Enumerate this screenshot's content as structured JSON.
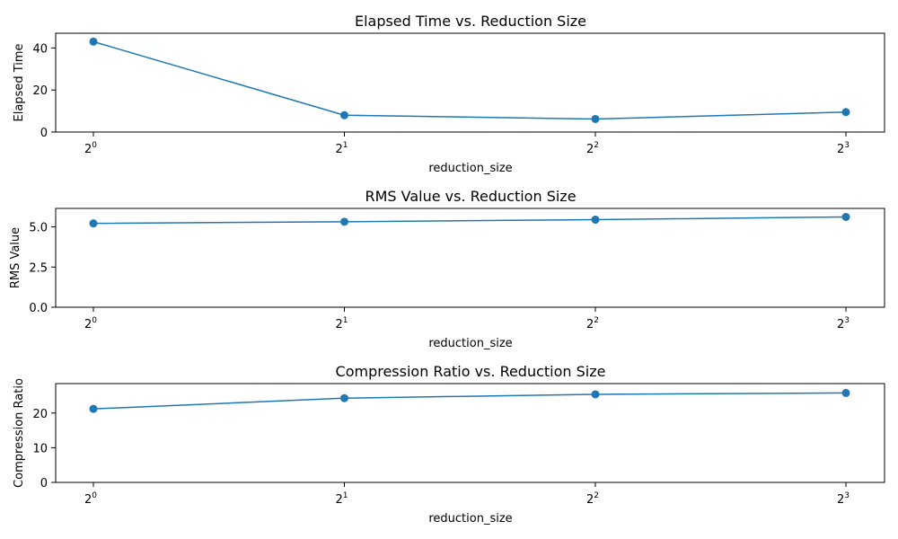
{
  "colors": {
    "series": "#1f77b4"
  },
  "chart_data": [
    {
      "type": "line",
      "title": "Elapsed Time vs. Reduction Size",
      "xlabel": "reduction_size",
      "ylabel": "Elapsed Time",
      "x_scale": "log2",
      "x": [
        1,
        2,
        4,
        8
      ],
      "x_ticks": [
        {
          "base": "2",
          "exp": "0"
        },
        {
          "base": "2",
          "exp": "1"
        },
        {
          "base": "2",
          "exp": "2"
        },
        {
          "base": "2",
          "exp": "3"
        }
      ],
      "y_ticks": [
        "0",
        "20",
        "40"
      ],
      "ylim": [
        0,
        47
      ],
      "marker": "circle",
      "grid": false,
      "series": [
        {
          "values": [
            43.0,
            8.0,
            6.2,
            9.5
          ]
        }
      ]
    },
    {
      "type": "line",
      "title": "RMS Value vs. Reduction Size",
      "xlabel": "reduction_size",
      "ylabel": "RMS Value",
      "x_scale": "log2",
      "x": [
        1,
        2,
        4,
        8
      ],
      "x_ticks": [
        {
          "base": "2",
          "exp": "0"
        },
        {
          "base": "2",
          "exp": "1"
        },
        {
          "base": "2",
          "exp": "2"
        },
        {
          "base": "2",
          "exp": "3"
        }
      ],
      "y_ticks": [
        "0.0",
        "2.5",
        "5.0"
      ],
      "ylim": [
        0,
        6.15
      ],
      "marker": "circle",
      "grid": false,
      "series": [
        {
          "values": [
            5.22,
            5.32,
            5.45,
            5.62
          ]
        }
      ]
    },
    {
      "type": "line",
      "title": "Compression Ratio vs. Reduction Size",
      "xlabel": "reduction_size",
      "ylabel": "Compression Ratio",
      "x_scale": "log2",
      "x": [
        1,
        2,
        4,
        8
      ],
      "x_ticks": [
        {
          "base": "2",
          "exp": "0"
        },
        {
          "base": "2",
          "exp": "1"
        },
        {
          "base": "2",
          "exp": "2"
        },
        {
          "base": "2",
          "exp": "3"
        }
      ],
      "y_ticks": [
        "0",
        "10",
        "20"
      ],
      "ylim": [
        0,
        28.5
      ],
      "marker": "circle",
      "grid": false,
      "series": [
        {
          "values": [
            21.2,
            24.3,
            25.4,
            25.8
          ]
        }
      ]
    }
  ]
}
